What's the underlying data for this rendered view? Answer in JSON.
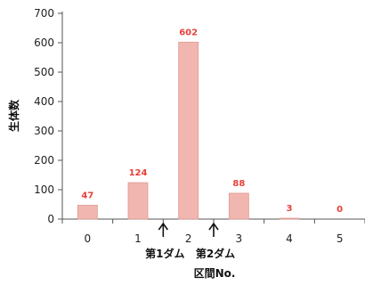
{
  "chart_data": {
    "type": "bar",
    "categories": [
      "0",
      "1",
      "2",
      "3",
      "4",
      "5"
    ],
    "values": [
      47,
      124,
      602,
      88,
      3,
      0
    ],
    "data_labels": [
      "47",
      "124",
      "602",
      "88",
      "3",
      "0"
    ],
    "xlabel": "区間No.",
    "ylabel": "生体数",
    "ylim": [
      0,
      700
    ],
    "yticks": [
      0,
      100,
      200,
      300,
      400,
      500,
      600,
      700
    ],
    "grid": false,
    "legend": "none",
    "annotations": [
      {
        "text": "第1ダム",
        "x_between": [
          "1",
          "2"
        ]
      },
      {
        "text": "第2ダム",
        "x_between": [
          "2",
          "3"
        ]
      }
    ],
    "colors": {
      "bar": "#f2b6b0",
      "bar_edge": "#dd9a94",
      "data_label": "#e8403a",
      "axis": "#555555"
    }
  }
}
